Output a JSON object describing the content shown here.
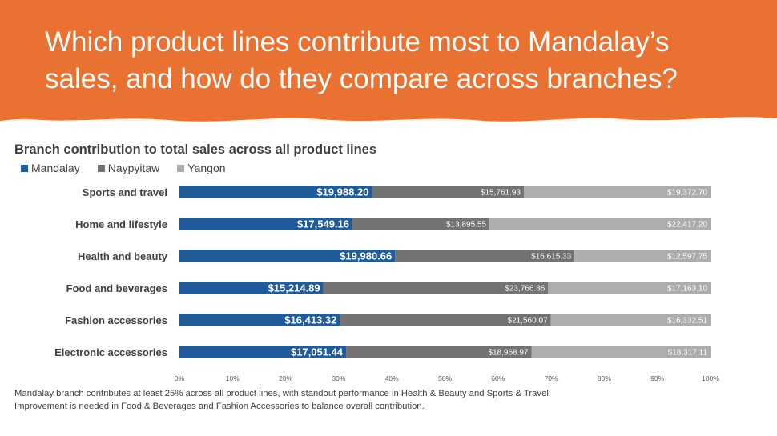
{
  "headline": "Which product lines contribute most to Mandalay’s sales, and how do they compare across branches?",
  "colors": {
    "banner": "#E97132",
    "Mandalay": "#1F5C99",
    "Naypyitaw": "#737373",
    "Yangon": "#ADADAD"
  },
  "chart_data": {
    "type": "bar",
    "orientation": "horizontal",
    "stacked": "100%",
    "title": "Branch contribution to total sales across all product lines",
    "categories": [
      "Sports and travel",
      "Home and lifestyle",
      "Health and beauty",
      "Food and beverages",
      "Fashion accessories",
      "Electronic accessories"
    ],
    "series": [
      {
        "name": "Mandalay",
        "values": [
          19988.2,
          17549.16,
          19980.66,
          15214.89,
          16413.32,
          17051.44
        ],
        "labels": [
          "$19,988.20",
          "$17,549.16",
          "$19,980.66",
          "$15,214.89",
          "$16,413.32",
          "$17,051.44"
        ]
      },
      {
        "name": "Naypyitaw",
        "values": [
          15761.93,
          13895.55,
          16615.33,
          23766.86,
          21560.07,
          18968.97
        ],
        "labels": [
          "$15,761.93",
          "$13,895.55",
          "$16,615.33",
          "$23,766.86",
          "$21,560.07",
          "$18,968.97"
        ]
      },
      {
        "name": "Yangon",
        "values": [
          19372.7,
          22417.2,
          12597.75,
          17163.1,
          16332.51,
          18317.11
        ],
        "labels": [
          "$19,372.70",
          "$22,417.20",
          "$12,597.75",
          "$17,163.10",
          "$16,332.51",
          "$18,317.11"
        ]
      }
    ],
    "x_ticks": [
      "0%",
      "10%",
      "20%",
      "30%",
      "40%",
      "50%",
      "60%",
      "70%",
      "80%",
      "90%",
      "100%"
    ],
    "xlim": [
      0,
      100
    ],
    "grid": false,
    "legend_position": "top-left"
  },
  "notes": [
    "Mandalay branch contributes at least 25% across all product lines, with standout performance in Health & Beauty and Sports & Travel.",
    "Improvement is needed in Food & Beverages and Fashion Accessories to balance overall contribution."
  ]
}
